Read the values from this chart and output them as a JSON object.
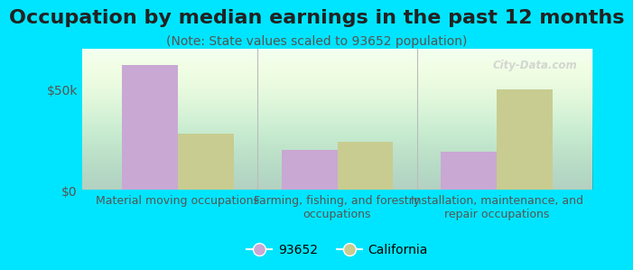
{
  "title": "Occupation by median earnings in the past 12 months",
  "subtitle": "(Note: State values scaled to 93652 population)",
  "categories": [
    "Material moving occupations",
    "Farming, fishing, and forestry\noccupations",
    "Installation, maintenance, and\nrepair occupations"
  ],
  "values_93652": [
    62000,
    20000,
    19000
  ],
  "values_california": [
    28000,
    24000,
    50000
  ],
  "bar_color_93652": "#c9a8d4",
  "bar_color_california": "#c8cc90",
  "background_color": "#00e5ff",
  "ylim": [
    0,
    70000
  ],
  "yticks": [
    0,
    50000
  ],
  "ytick_labels": [
    "$0",
    "$50k"
  ],
  "legend_label_93652": "93652",
  "legend_label_california": "California",
  "bar_width": 0.35,
  "watermark": "City-Data.com",
  "title_fontsize": 16,
  "subtitle_fontsize": 10,
  "tick_fontsize": 10,
  "xlabel_fontsize": 9
}
